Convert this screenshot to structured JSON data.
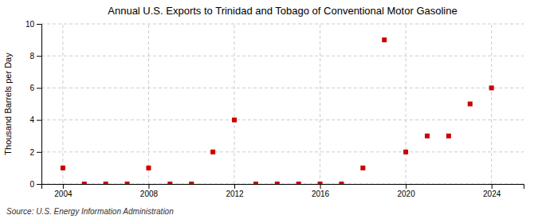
{
  "chart_data": {
    "type": "scatter",
    "title": "Annual U.S. Exports to Trinidad and Tobago of Conventional Motor Gasoline",
    "ylabel": "Thousand Barrels per Day",
    "source": "Source: U.S. Energy Information Administration",
    "x": [
      2004,
      2005,
      2006,
      2007,
      2008,
      2009,
      2010,
      2011,
      2012,
      2013,
      2014,
      2015,
      2016,
      2017,
      2018,
      2019,
      2020,
      2021,
      2022,
      2023,
      2024
    ],
    "values": [
      1,
      0,
      0,
      0,
      1,
      0,
      0,
      2,
      4,
      0,
      0,
      0,
      0,
      0,
      1,
      9,
      2,
      3,
      3,
      5,
      6
    ],
    "color": "#cc0000",
    "marker": "square",
    "xlim": [
      2003,
      2025.5
    ],
    "ylim": [
      0,
      10
    ],
    "xticks": [
      2004,
      2008,
      2012,
      2016,
      2020,
      2024
    ],
    "yticks": [
      0,
      2,
      4,
      6,
      8,
      10
    ],
    "grid": true
  }
}
